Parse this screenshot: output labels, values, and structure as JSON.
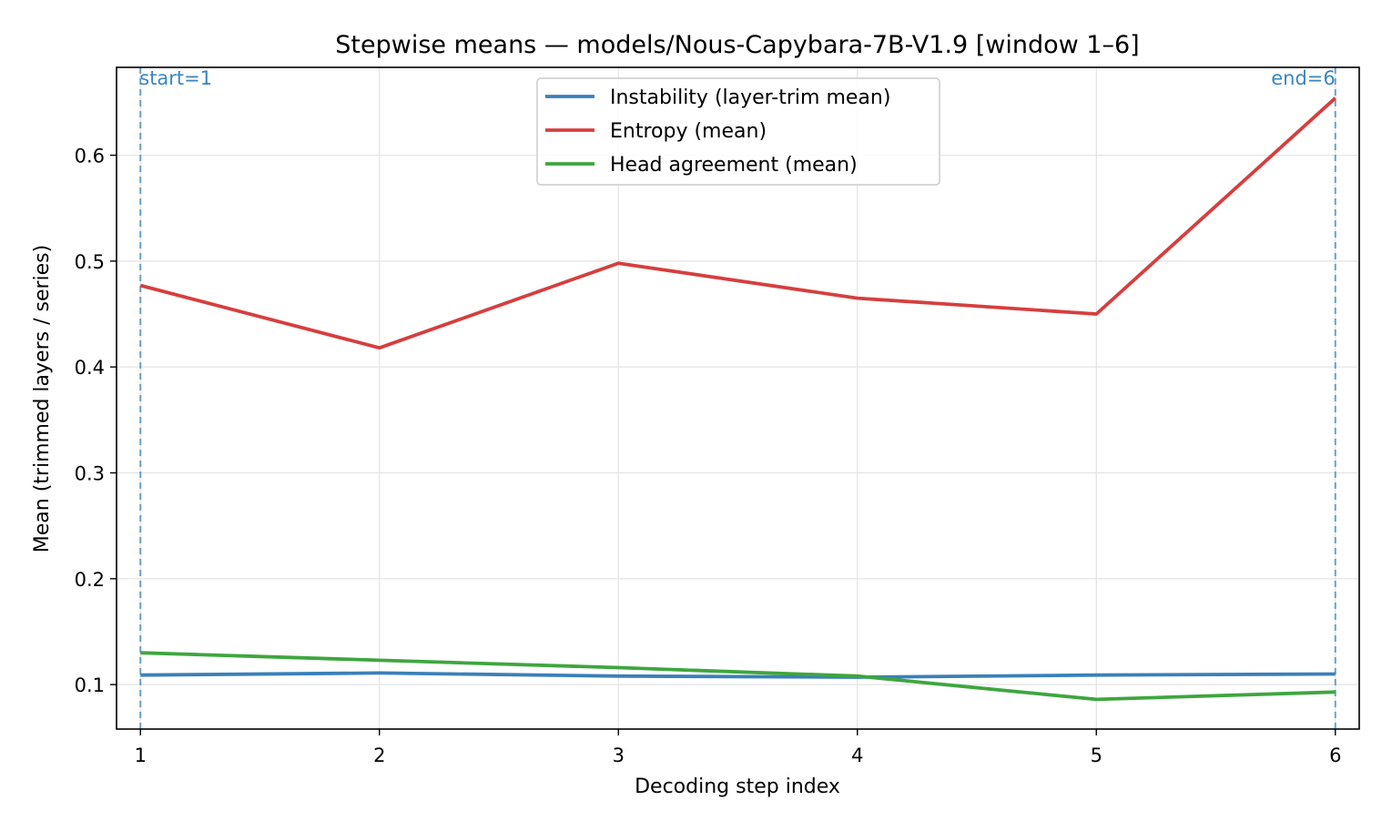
{
  "chart_data": {
    "type": "line",
    "title": "Stepwise means — models/Nous-Capybara-7B-V1.9  [window 1–6]",
    "xlabel": "Decoding step index",
    "ylabel": "Mean (trimmed layers / series)",
    "x": [
      1,
      2,
      3,
      4,
      5,
      6
    ],
    "xticks": [
      "1",
      "2",
      "3",
      "4",
      "5",
      "6"
    ],
    "yticks": [
      "0.1",
      "0.2",
      "0.3",
      "0.4",
      "0.5",
      "0.6"
    ],
    "xlim": [
      0.9,
      6.1
    ],
    "ylim": [
      0.058,
      0.683
    ],
    "grid": true,
    "legend_position": "top-center",
    "series": [
      {
        "name": "Instability (layer-trim mean)",
        "color": "#3a80b9",
        "values": [
          0.109,
          0.111,
          0.108,
          0.107,
          0.109,
          0.11
        ]
      },
      {
        "name": "Entropy (mean)",
        "color": "#d63e3e",
        "values": [
          0.477,
          0.418,
          0.498,
          0.465,
          0.45,
          0.654
        ]
      },
      {
        "name": "Head agreement (mean)",
        "color": "#3ea63e",
        "values": [
          0.13,
          0.123,
          0.116,
          0.108,
          0.086,
          0.093
        ]
      }
    ],
    "annotations": [
      {
        "text": "start=1",
        "x": 1,
        "color": "#3a86be"
      },
      {
        "text": "end=6",
        "x": 6,
        "color": "#3a86be"
      }
    ]
  }
}
